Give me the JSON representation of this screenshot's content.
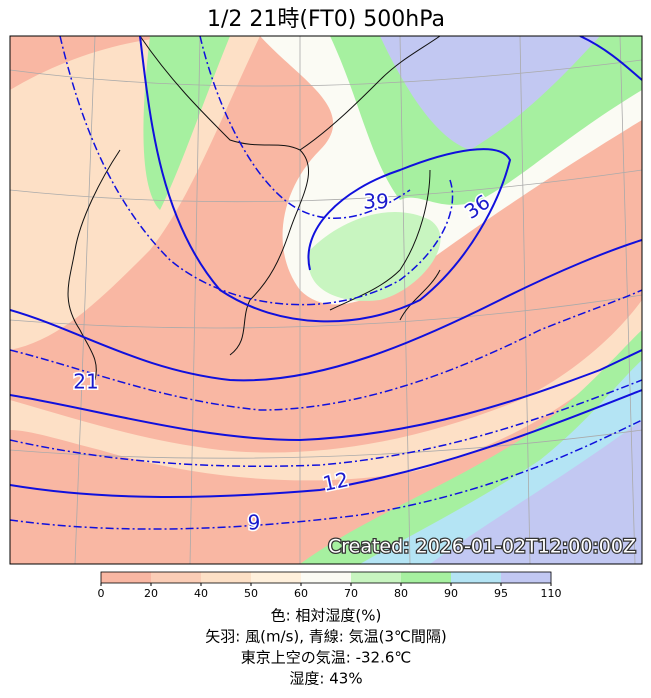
{
  "title": "1/2  21時(FT0)     500hPa",
  "contour_labels": [
    "39",
    "36",
    "21",
    "12",
    "9"
  ],
  "created": "Created: 2026-01-02T12:00:00Z",
  "colorbar": {
    "ticks": [
      0,
      20,
      40,
      50,
      60,
      70,
      80,
      90,
      95,
      110
    ],
    "colors": [
      "#f9b7a3",
      "#fbcdb6",
      "#fde0c6",
      "#fff0dc",
      "#fbfbf4",
      "#c8f5c0",
      "#a6f0a0",
      "#b4e4f4",
      "#c2c8f2"
    ]
  },
  "captions": [
    "色: 相対湿度(%)",
    "矢羽: 風(m/s),  青線: 気温(3℃間隔)",
    "東京上空の気温: -32.6℃",
    "湿度: 43%"
  ]
}
